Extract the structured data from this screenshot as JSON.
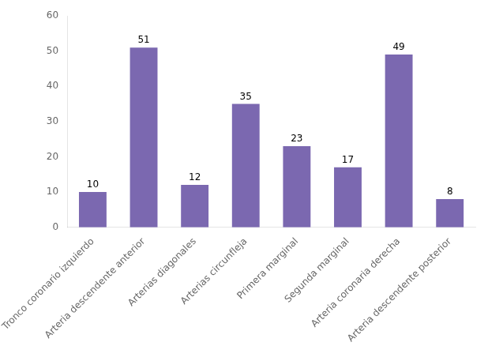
{
  "chart_data": {
    "type": "bar",
    "categories": [
      "Tronco coronario izquierdo",
      "Arteria descendente anterior",
      "Arterias diagonales",
      "Arterias circunfleja",
      "Primera marginal",
      "Segunda marginal",
      "Arteria coronaria derecha",
      "Arteria descendente posterior"
    ],
    "values": [
      10,
      51,
      12,
      35,
      23,
      17,
      49,
      8
    ],
    "color": "#7B68B0",
    "ylim": [
      0,
      60
    ],
    "yticks": [
      0,
      10,
      20,
      30,
      40,
      50,
      60
    ],
    "grid": false,
    "data_labels": true
  }
}
